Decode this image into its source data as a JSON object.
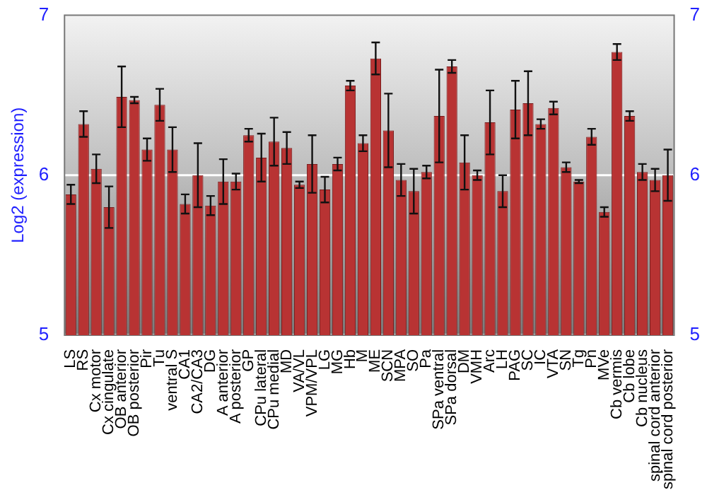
{
  "chart_data": {
    "type": "bar",
    "ylabel": "Log2 (expression)",
    "categories": [
      "LS",
      "RS",
      "Cx motor",
      "Cx cingulate",
      "OB anterior",
      "OB posterior",
      "Pir",
      "Tu",
      "ventral S",
      "CA1",
      "CA2/CA3",
      "DG",
      "A anterior",
      "A posterior",
      "GP",
      "CPu lateral",
      "CPu medial",
      "MD",
      "VA/VL",
      "VPM/VPL",
      "LG",
      "MG",
      "Hb",
      "M",
      "ME",
      "SCN",
      "MPA",
      "SO",
      "Pa",
      "SPa ventral",
      "SPa dorsal",
      "DM",
      "VMH",
      "Arc",
      "LH",
      "PAG",
      "SC",
      "IC",
      "VTA",
      "SN",
      "Tg",
      "Pn",
      "MVe",
      "Cb vermis",
      "Cb lobe",
      "Cb nucleus",
      "spinal cord anterior",
      "spinal cord posterior"
    ],
    "values": [
      5.88,
      6.32,
      6.04,
      5.8,
      6.49,
      6.47,
      6.16,
      6.44,
      6.16,
      5.82,
      6.0,
      5.81,
      5.96,
      5.96,
      6.25,
      6.11,
      6.21,
      6.17,
      5.94,
      6.07,
      5.91,
      6.07,
      6.56,
      6.2,
      6.73,
      6.28,
      5.97,
      5.9,
      6.02,
      6.37,
      6.68,
      6.08,
      6.0,
      6.33,
      5.9,
      6.41,
      6.45,
      6.32,
      6.42,
      6.05,
      5.96,
      6.24,
      5.77,
      6.77,
      6.37,
      6.02,
      5.97,
      6.0
    ],
    "errors": [
      0.06,
      0.08,
      0.09,
      0.13,
      0.19,
      0.02,
      0.07,
      0.1,
      0.14,
      0.06,
      0.2,
      0.06,
      0.14,
      0.05,
      0.04,
      0.15,
      0.15,
      0.1,
      0.02,
      0.18,
      0.08,
      0.04,
      0.03,
      0.05,
      0.1,
      0.23,
      0.1,
      0.14,
      0.04,
      0.29,
      0.04,
      0.17,
      0.03,
      0.2,
      0.1,
      0.18,
      0.2,
      0.03,
      0.04,
      0.03,
      0.01,
      0.05,
      0.03,
      0.05,
      0.03,
      0.05,
      0.07,
      0.16
    ],
    "color": "#b83333",
    "ylim": [
      5,
      7
    ],
    "yticks": [
      5,
      6,
      7
    ],
    "y2lim": [
      5,
      7
    ],
    "y2ticks": [
      5,
      6,
      7
    ],
    "grid": "y",
    "legend": false
  }
}
